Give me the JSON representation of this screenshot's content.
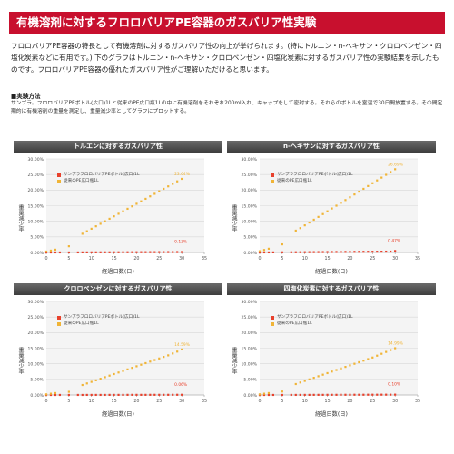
{
  "page": {
    "title": "有機溶剤に対するフロロバリアPE容器のガスバリア性実験",
    "intro": "フロロバリアPE容器の特長として有機溶剤に対するガスバリア性の向上が挙げられます。(特にトルエン・n-ヘキサン・クロロベンゼン・四塩化炭素などに有用です。) 下のグラフはトルエン・n-ヘキサン・クロロベンゼン・四塩化炭素に対するガスバリア性の実験結果を示したものです。フロロバリアPE容器の優れたガスバリア性がご理解いただけると思います。",
    "method_heading": "■実験方法",
    "method_text": "サンプラ。フロロバリアPEボトル(広口)1Lと従来のPE広口瓶1Lの中に有機溶剤をそれぞれ200ml入れ、キャップをして密封する。それらのボトルを室温で30日間放置する。その間定期的に有機溶剤の重量を測定し、重量減少率としてグラフにプロットする。"
  },
  "colors": {
    "title_bg": "#c8102e",
    "header_bg": "#4a4a4a",
    "barrier": "#e8412c",
    "conventional": "#f0b436",
    "grid": "#d8d8d8",
    "plot_bg": "#f4f4f4"
  },
  "chart_data": [
    {
      "type": "scatter",
      "title": "トルエンに対するガスバリア性",
      "xlabel": "経過日数(日)",
      "ylabel": "重量減少率",
      "xlim": [
        0,
        35
      ],
      "ylim": [
        0,
        30
      ],
      "x_ticks": [
        0,
        5,
        10,
        15,
        20,
        25,
        30,
        35
      ],
      "y_ticks": [
        "0.00%",
        "5.00%",
        "10.00%",
        "15.00%",
        "20.00%",
        "25.00%",
        "30.00%"
      ],
      "legend": [
        "サンプラフロロバリアPEボトル(広口)1L",
        "従来のPE広口瓶1L"
      ],
      "series": [
        {
          "name": "サンプラフロロバリアPEボトル(広口)1L",
          "x": [
            0,
            1,
            2,
            3,
            5,
            7,
            8,
            9,
            10,
            11,
            12,
            13,
            14,
            15,
            16,
            17,
            18,
            19,
            20,
            21,
            22,
            23,
            24,
            25,
            26,
            27,
            28,
            29,
            30
          ],
          "y": [
            0,
            0,
            0.01,
            0.01,
            0.01,
            0.02,
            0.03,
            0.03,
            0.04,
            0.04,
            0.05,
            0.05,
            0.05,
            0.06,
            0.06,
            0.07,
            0.07,
            0.08,
            0.08,
            0.09,
            0.09,
            0.1,
            0.1,
            0.11,
            0.11,
            0.12,
            0.12,
            0.13,
            0.13
          ]
        },
        {
          "name": "従来のPE広口瓶1L",
          "x": [
            0,
            1,
            2,
            5,
            8,
            9,
            10,
            11,
            12,
            13,
            14,
            15,
            16,
            17,
            18,
            19,
            20,
            21,
            22,
            23,
            24,
            25,
            26,
            27,
            28,
            29,
            30
          ],
          "y": [
            0.3,
            0.6,
            0.9,
            2,
            6,
            6.8,
            7.6,
            8.4,
            9.2,
            10,
            10.8,
            11.6,
            12.4,
            13.2,
            14,
            14.8,
            15.6,
            16.4,
            17.2,
            18,
            18.8,
            19.6,
            20.4,
            21.2,
            22,
            22.8,
            23.6
          ]
        }
      ],
      "annotations": [
        {
          "text": "23.64%",
          "x": 30,
          "y": 23.64,
          "series": 1
        },
        {
          "text": "0.13%",
          "x": 30,
          "y": 0.13,
          "series": 0
        }
      ]
    },
    {
      "type": "scatter",
      "title": "n-ヘキサンに対するガスバリア性",
      "xlabel": "経過日数(日)",
      "ylabel": "重量減少率",
      "xlim": [
        0,
        35
      ],
      "ylim": [
        0,
        30
      ],
      "x_ticks": [
        0,
        5,
        10,
        15,
        20,
        25,
        30,
        35
      ],
      "y_ticks": [
        "0.00%",
        "5.00%",
        "10.00%",
        "15.00%",
        "20.00%",
        "25.00%",
        "30.00%"
      ],
      "legend": [
        "サンプラフロロバリアPEボトル(広口)1L",
        "従来のPE広口瓶1L"
      ],
      "series": [
        {
          "name": "サンプラフロロバリアPEボトル(広口)1L",
          "x": [
            0,
            1,
            2,
            3,
            5,
            7,
            8,
            9,
            10,
            11,
            12,
            13,
            14,
            15,
            16,
            17,
            18,
            19,
            20,
            21,
            22,
            23,
            24,
            25,
            26,
            27,
            28,
            29,
            30
          ],
          "y": [
            0,
            0.01,
            0.02,
            0.03,
            0.05,
            0.06,
            0.07,
            0.08,
            0.09,
            0.1,
            0.11,
            0.12,
            0.13,
            0.14,
            0.15,
            0.16,
            0.17,
            0.18,
            0.19,
            0.2,
            0.21,
            0.22,
            0.23,
            0.24,
            0.25,
            0.26,
            0.27,
            0.28,
            0.47
          ]
        },
        {
          "name": "従来のPE広口瓶1L",
          "x": [
            0,
            1,
            2,
            5,
            8,
            9,
            10,
            11,
            12,
            13,
            14,
            15,
            16,
            17,
            18,
            19,
            20,
            21,
            22,
            23,
            24,
            25,
            26,
            27,
            28,
            29,
            30
          ],
          "y": [
            0.4,
            0.8,
            1.2,
            2.6,
            7,
            7.8,
            8.7,
            9.6,
            10.5,
            11.4,
            12.3,
            13.2,
            14.1,
            15,
            15.9,
            16.8,
            17.7,
            18.6,
            19.5,
            20.4,
            21.3,
            22.2,
            23.1,
            24,
            24.9,
            25.8,
            26.69
          ]
        }
      ],
      "annotations": [
        {
          "text": "26.69%",
          "x": 30,
          "y": 26.69,
          "series": 1
        },
        {
          "text": "0.47%",
          "x": 30,
          "y": 0.47,
          "series": 0
        }
      ]
    },
    {
      "type": "scatter",
      "title": "クロロベンゼンに対するガスバリア性",
      "xlabel": "経過日数(日)",
      "ylabel": "重量減少率",
      "xlim": [
        0,
        35
      ],
      "ylim": [
        0,
        30
      ],
      "x_ticks": [
        0,
        5,
        10,
        15,
        20,
        25,
        30,
        35
      ],
      "y_ticks": [
        "0.00%",
        "5.00%",
        "10.00%",
        "15.00%",
        "20.00%",
        "25.00%",
        "30.00%"
      ],
      "legend": [
        "サンプラフロロバリアPEボトル(広口)1L",
        "従来のPE広口瓶1L"
      ],
      "series": [
        {
          "name": "サンプラフロロバリアPEボトル(広口)1L",
          "x": [
            0,
            1,
            2,
            3,
            5,
            7,
            8,
            9,
            10,
            11,
            12,
            13,
            14,
            15,
            16,
            17,
            18,
            19,
            20,
            21,
            22,
            23,
            24,
            25,
            26,
            27,
            28,
            29,
            30
          ],
          "y": [
            0,
            0,
            0,
            0.01,
            0.01,
            0.01,
            0.01,
            0.02,
            0.02,
            0.02,
            0.02,
            0.02,
            0.03,
            0.03,
            0.03,
            0.03,
            0.04,
            0.04,
            0.04,
            0.04,
            0.04,
            0.05,
            0.05,
            0.05,
            0.05,
            0.05,
            0.06,
            0.06,
            0.06
          ]
        },
        {
          "name": "従来のPE広口瓶1L",
          "x": [
            0,
            1,
            2,
            5,
            8,
            9,
            10,
            11,
            12,
            13,
            14,
            15,
            16,
            17,
            18,
            19,
            20,
            21,
            22,
            23,
            24,
            25,
            26,
            27,
            28,
            29,
            30
          ],
          "y": [
            0.2,
            0.4,
            0.6,
            1,
            3.2,
            3.7,
            4.2,
            4.7,
            5.2,
            5.7,
            6.2,
            6.7,
            7.2,
            7.7,
            8.2,
            8.7,
            9.2,
            9.7,
            10.2,
            10.7,
            11.2,
            11.7,
            12.2,
            12.7,
            13.3,
            13.9,
            14.59
          ]
        }
      ],
      "annotations": [
        {
          "text": "14.59%",
          "x": 30,
          "y": 14.59,
          "series": 1
        },
        {
          "text": "0.06%",
          "x": 30,
          "y": 0.06,
          "series": 0
        }
      ]
    },
    {
      "type": "scatter",
      "title": "四塩化炭素に対するガスバリア性",
      "xlabel": "経過日数(日)",
      "ylabel": "重量減少率",
      "xlim": [
        0,
        35
      ],
      "ylim": [
        0,
        30
      ],
      "x_ticks": [
        0,
        5,
        10,
        15,
        20,
        25,
        30,
        35
      ],
      "y_ticks": [
        "0.00%",
        "5.00%",
        "10.00%",
        "15.00%",
        "20.00%",
        "25.00%",
        "30.00%"
      ],
      "legend": [
        "サンプラフロロバリアPEボトル(広口)1L",
        "従来のPE広口瓶1L"
      ],
      "series": [
        {
          "name": "サンプラフロロバリアPEボトル(広口)1L",
          "x": [
            0,
            1,
            2,
            3,
            5,
            7,
            8,
            9,
            10,
            11,
            12,
            13,
            14,
            15,
            16,
            17,
            18,
            19,
            20,
            21,
            22,
            23,
            24,
            25,
            26,
            27,
            28,
            29,
            30
          ],
          "y": [
            0,
            0,
            0,
            0.01,
            0.01,
            0.02,
            0.02,
            0.03,
            0.03,
            0.03,
            0.04,
            0.04,
            0.04,
            0.05,
            0.05,
            0.05,
            0.06,
            0.06,
            0.06,
            0.07,
            0.07,
            0.07,
            0.08,
            0.08,
            0.08,
            0.09,
            0.09,
            0.09,
            0.1
          ]
        },
        {
          "name": "従来のPE広口瓶1L",
          "x": [
            0,
            1,
            2,
            5,
            8,
            9,
            10,
            11,
            12,
            13,
            14,
            15,
            16,
            17,
            18,
            19,
            20,
            21,
            22,
            23,
            24,
            25,
            26,
            27,
            28,
            29,
            30
          ],
          "y": [
            0.2,
            0.4,
            0.6,
            1.1,
            3.5,
            4,
            4.5,
            5,
            5.5,
            6,
            6.5,
            7,
            7.5,
            8,
            8.5,
            9,
            9.5,
            10,
            10.5,
            11,
            11.5,
            12,
            12.6,
            13.2,
            13.8,
            14.4,
            14.99
          ]
        }
      ],
      "annotations": [
        {
          "text": "14.99%",
          "x": 30,
          "y": 14.99,
          "series": 1
        },
        {
          "text": "0.10%",
          "x": 30,
          "y": 0.1,
          "series": 0
        }
      ]
    }
  ]
}
